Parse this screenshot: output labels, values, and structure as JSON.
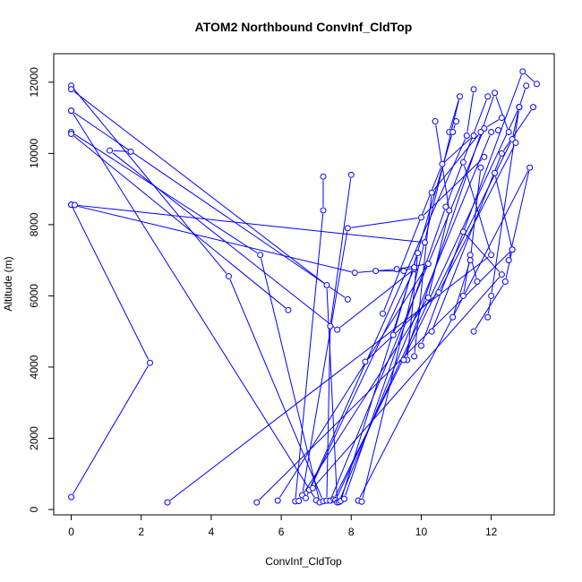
{
  "chart_data": {
    "type": "line",
    "title": "ATOM2 Northbound ConvInf_CldTop",
    "xlabel": "ConvInf_CldTop",
    "ylabel": "Altitude (m)",
    "xlim": [
      -0.5,
      13.8
    ],
    "ylim": [
      -150,
      12800
    ],
    "x_ticks": [
      0,
      2,
      4,
      6,
      8,
      10,
      12
    ],
    "y_ticks": [
      0,
      2000,
      4000,
      6000,
      8000,
      10000,
      12000
    ],
    "grid": false,
    "color": "#0000ff",
    "marker": "open-circle",
    "series": [
      {
        "points": [
          [
            0.0,
            350
          ],
          [
            2.25,
            4120
          ],
          [
            0.0,
            8560
          ]
        ]
      },
      {
        "points": [
          [
            2.75,
            200
          ],
          [
            12.0,
            7150
          ],
          [
            11.2,
            9750
          ]
        ]
      },
      {
        "points": [
          [
            5.3,
            200
          ],
          [
            12.6,
            7300
          ],
          [
            12.1,
            9450
          ]
        ]
      },
      {
        "points": [
          [
            5.9,
            250
          ],
          [
            10.2,
            6900
          ],
          [
            9.3,
            6750
          ],
          [
            8.1,
            6650
          ],
          [
            0.0,
            8560
          ]
        ]
      },
      {
        "points": [
          [
            6.4,
            230
          ],
          [
            7.2,
            8400
          ],
          [
            7.2,
            9350
          ]
        ]
      },
      {
        "points": [
          [
            6.5,
            240
          ],
          [
            10.2,
            5950
          ],
          [
            10.8,
            8400
          ],
          [
            10.4,
            10900
          ]
        ]
      },
      {
        "points": [
          [
            6.6,
            400
          ],
          [
            7.9,
            7900
          ],
          [
            10.0,
            8200
          ],
          [
            11.8,
            9900
          ]
        ]
      },
      {
        "points": [
          [
            6.7,
            320
          ],
          [
            9.8,
            6750
          ],
          [
            7.6,
            5050
          ],
          [
            1.1,
            10080
          ],
          [
            1.7,
            10050
          ]
        ]
      },
      {
        "points": [
          [
            6.8,
            550
          ],
          [
            11.3,
            10500
          ],
          [
            11.5,
            11800
          ]
        ]
      },
      {
        "points": [
          [
            6.9,
            600
          ],
          [
            12.3,
            6600
          ],
          [
            11.2,
            7800
          ]
        ]
      },
      {
        "points": [
          [
            7.0,
            260
          ],
          [
            0.0,
            11200
          ]
        ]
      },
      {
        "points": [
          [
            7.1,
            200
          ],
          [
            5.4,
            7150
          ],
          [
            0.0,
            10600
          ]
        ]
      },
      {
        "points": [
          [
            7.2,
            230
          ],
          [
            4.5,
            6550
          ],
          [
            0.0,
            11900
          ]
        ]
      },
      {
        "points": [
          [
            7.3,
            250
          ],
          [
            7.4,
            5150
          ],
          [
            8.0,
            9400
          ]
        ]
      },
      {
        "points": [
          [
            7.4,
            250
          ],
          [
            11.8,
            10700
          ],
          [
            12.3,
            11000
          ]
        ]
      },
      {
        "points": [
          [
            7.5,
            280
          ],
          [
            12.6,
            10400
          ],
          [
            12.8,
            11300
          ]
        ]
      },
      {
        "points": [
          [
            7.55,
            260
          ],
          [
            12.8,
            11300
          ],
          [
            13.0,
            11900
          ]
        ]
      },
      {
        "points": [
          [
            7.6,
            200
          ],
          [
            7.3,
            6300
          ],
          [
            0.0,
            11800
          ]
        ]
      },
      {
        "points": [
          [
            7.65,
            210
          ],
          [
            12.0,
            10600
          ],
          [
            12.2,
            10650
          ]
        ]
      },
      {
        "points": [
          [
            7.7,
            240
          ],
          [
            9.9,
            7200
          ],
          [
            9.6,
            4200
          ]
        ]
      },
      {
        "points": [
          [
            7.8,
            300
          ],
          [
            10.7,
            8500
          ],
          [
            11.9,
            11600
          ]
        ]
      },
      {
        "points": [
          [
            8.2,
            250
          ],
          [
            13.1,
            9600
          ],
          [
            12.5,
            7000
          ]
        ]
      },
      {
        "points": [
          [
            8.3,
            220
          ],
          [
            11.1,
            11600
          ],
          [
            10.8,
            10600
          ]
        ]
      },
      {
        "points": [
          [
            8.4,
            4150
          ],
          [
            10.5,
            6100
          ],
          [
            12.7,
            10300
          ]
        ]
      },
      {
        "points": [
          [
            8.7,
            6700
          ],
          [
            9.5,
            6700
          ],
          [
            9.8,
            6800
          ]
        ]
      },
      {
        "points": [
          [
            8.9,
            5500
          ],
          [
            10.6,
            9700
          ],
          [
            11.5,
            10500
          ]
        ]
      },
      {
        "points": [
          [
            9.2,
            4900
          ],
          [
            10.9,
            10600
          ],
          [
            11.0,
            10900
          ]
        ]
      },
      {
        "points": [
          [
            9.5,
            4200
          ],
          [
            12.1,
            11700
          ],
          [
            12.5,
            10600
          ]
        ]
      },
      {
        "points": [
          [
            9.8,
            4300
          ],
          [
            10.3,
            8900
          ],
          [
            11.7,
            10600
          ]
        ]
      },
      {
        "points": [
          [
            10.0,
            4600
          ],
          [
            12.9,
            12300
          ],
          [
            13.3,
            11950
          ]
        ]
      },
      {
        "points": [
          [
            10.3,
            5000
          ],
          [
            12.3,
            10000
          ],
          [
            13.2,
            11300
          ]
        ]
      },
      {
        "points": [
          [
            10.9,
            5400
          ],
          [
            11.4,
            7000
          ],
          [
            11.7,
            9600
          ]
        ]
      },
      {
        "points": [
          [
            11.2,
            6000
          ],
          [
            11.4,
            7150
          ],
          [
            11.6,
            6400
          ]
        ]
      },
      {
        "points": [
          [
            11.5,
            5000
          ],
          [
            12.4,
            6400
          ],
          [
            12.6,
            7300
          ]
        ]
      },
      {
        "points": [
          [
            11.9,
            5400
          ],
          [
            12.0,
            6000
          ],
          [
            12.8,
            11300
          ]
        ]
      },
      {
        "points": [
          [
            6.2,
            5600
          ],
          [
            0.0,
            10550
          ]
        ]
      },
      {
        "points": [
          [
            7.9,
            5900
          ],
          [
            0.0,
            11200
          ]
        ]
      },
      {
        "points": [
          [
            10.1,
            7500
          ],
          [
            0.1,
            8550
          ]
        ]
      }
    ]
  }
}
